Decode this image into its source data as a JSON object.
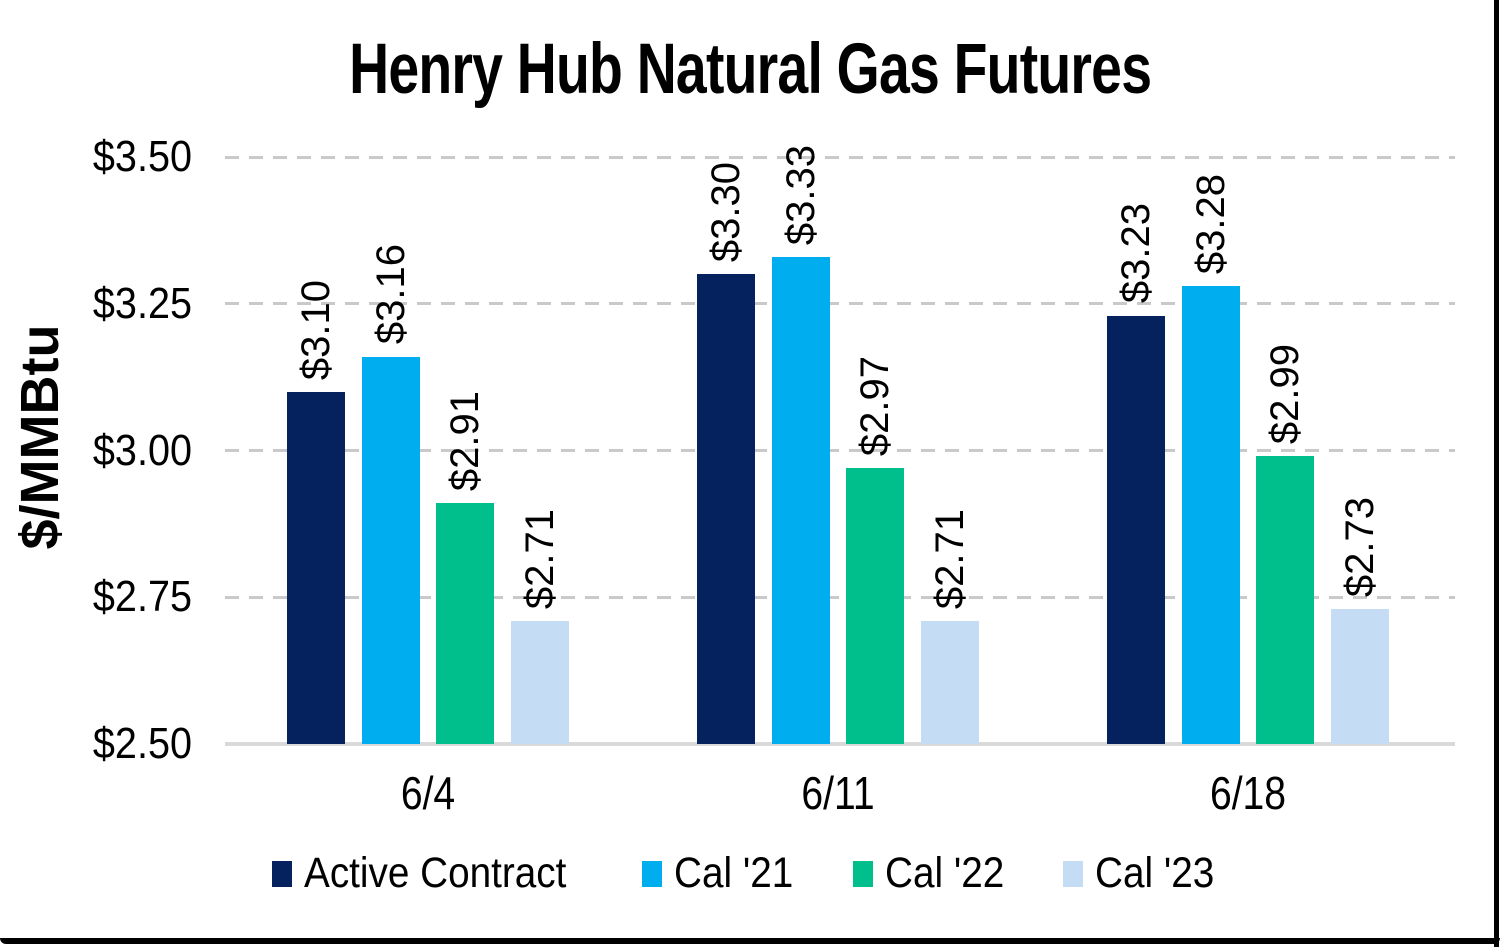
{
  "title": "Henry Hub Natural Gas Futures",
  "chart_data": {
    "type": "bar",
    "title": "Henry Hub Natural Gas Futures",
    "xlabel": "",
    "ylabel": "$/MMBtu",
    "ylim": [
      2.5,
      3.5
    ],
    "grid": "dashed horizontal gridlines, solid baseline",
    "legend_position": "bottom",
    "categories": [
      "6/4",
      "6/11",
      "6/18"
    ],
    "y_ticks": [
      {
        "value": 3.5,
        "label": "$3.50"
      },
      {
        "value": 3.25,
        "label": "$3.25"
      },
      {
        "value": 3.0,
        "label": "$3.00"
      },
      {
        "value": 2.75,
        "label": "$2.75"
      },
      {
        "value": 2.5,
        "label": "$2.50"
      }
    ],
    "series": [
      {
        "name": "Active Contract",
        "color": "#05215E",
        "values": [
          3.1,
          3.3,
          3.23
        ],
        "labels": [
          "$3.10",
          "$3.30",
          "$3.23"
        ]
      },
      {
        "name": "Cal '21",
        "color": "#00AEEF",
        "values": [
          3.16,
          3.33,
          3.28
        ],
        "labels": [
          "$3.16",
          "$3.33",
          "$3.28"
        ]
      },
      {
        "name": "Cal '22",
        "color": "#00BF8C",
        "values": [
          2.91,
          2.97,
          2.99
        ],
        "labels": [
          "$2.91",
          "$2.97",
          "$2.99"
        ]
      },
      {
        "name": "Cal '23",
        "color": "#C5DDF4",
        "values": [
          2.71,
          2.71,
          2.73
        ],
        "labels": [
          "$2.71",
          "$2.71",
          "$2.73"
        ]
      }
    ],
    "colors": {
      "gridline": "#C9C9C9",
      "baseline": "#D9D9D9",
      "text": "#000000"
    }
  }
}
